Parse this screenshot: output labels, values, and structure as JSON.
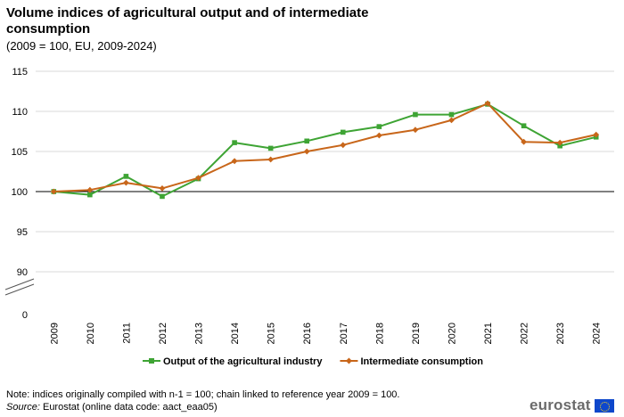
{
  "header": {
    "title": "Volume indices of agricultural output and of intermediate consumption",
    "subtitle": "(2009 = 100, EU, 2009-2024)"
  },
  "chart_data": {
    "type": "line",
    "title": "Volume indices of agricultural output and of intermediate consumption",
    "subtitle": "(2009 = 100, EU, 2009-2024)",
    "x": [
      "2009",
      "2010",
      "2011",
      "2012",
      "2013",
      "2014",
      "2015",
      "2016",
      "2017",
      "2018",
      "2019",
      "2020",
      "2021",
      "2022",
      "2023",
      "2024"
    ],
    "y_ticks": [
      "0",
      "90",
      "95",
      "100",
      "105",
      "110",
      "115"
    ],
    "ylim": [
      90,
      115
    ],
    "axis_break": true,
    "grid": true,
    "legend_position": "bottom",
    "series": [
      {
        "name": "Output of the agricultural industry",
        "color": "#3ea434",
        "marker": "square",
        "values": [
          100.0,
          99.6,
          101.9,
          99.4,
          101.6,
          106.1,
          105.4,
          106.3,
          107.4,
          108.1,
          109.6,
          109.6,
          110.9,
          108.2,
          105.7,
          106.8
        ]
      },
      {
        "name": "Intermediate consumption",
        "color": "#c8661a",
        "marker": "diamond",
        "values": [
          100.0,
          100.2,
          101.1,
          100.4,
          101.7,
          103.8,
          104.0,
          105.0,
          105.8,
          107.0,
          107.7,
          108.9,
          111.0,
          106.2,
          106.1,
          107.1
        ]
      }
    ]
  },
  "footer": {
    "note": "Note: indices originally compiled with n-1 = 100; chain linked to reference year 2009 = 100.",
    "source_label": "Source:",
    "source_text": " Eurostat (online data code: aact_eaa05)",
    "logo_text": "eurostat"
  }
}
